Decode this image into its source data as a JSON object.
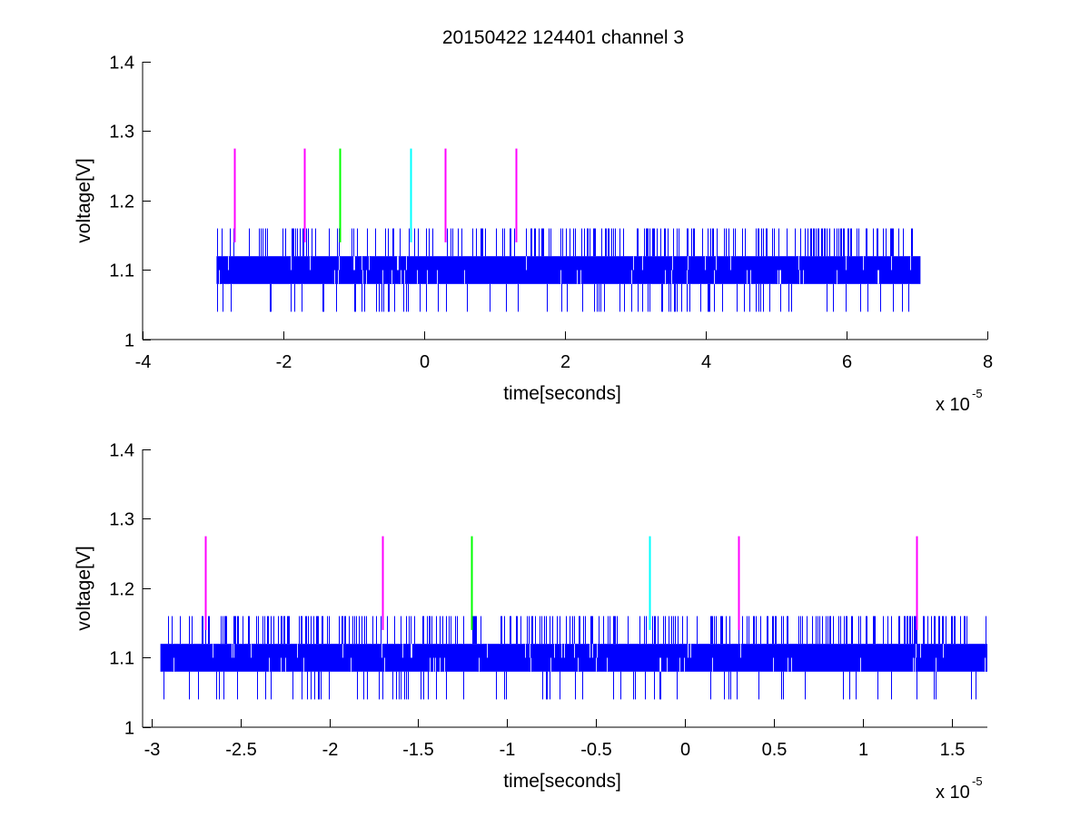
{
  "figure": {
    "title": "20150422 124401 channel 3"
  },
  "chart_data": [
    {
      "type": "line",
      "title": "20150422 124401 channel 3",
      "xlabel": "time[seconds]",
      "ylabel": "voltage[V]",
      "x_exponent_base": "x 10",
      "x_exponent_power": "-5",
      "xlim": [
        -4,
        8
      ],
      "ylim": [
        1,
        1.4
      ],
      "x_ticks": [
        -4,
        -2,
        0,
        2,
        4,
        6,
        8
      ],
      "x_tick_labels": [
        "-4",
        "-2",
        "0",
        "2",
        "4",
        "6",
        "8"
      ],
      "y_ticks": [
        1,
        1.1,
        1.2,
        1.3,
        1.4
      ],
      "y_tick_labels": [
        "1",
        "1.1",
        "1.2",
        "1.3",
        "1.4"
      ],
      "grid": false,
      "signal": {
        "color": "#0000ff",
        "x_range": [
          -2.95,
          7.05
        ],
        "band": [
          1.08,
          1.12
        ],
        "levels": [
          1.04,
          1.08,
          1.12,
          1.16
        ],
        "sparse_gap": [
          -1.15,
          -1.05
        ]
      },
      "markers": [
        {
          "x": -2.7,
          "y_range": [
            1.14,
            1.275
          ],
          "color": "#ff00ff"
        },
        {
          "x": -1.7,
          "y_range": [
            1.14,
            1.275
          ],
          "color": "#ff00ff"
        },
        {
          "x": -1.2,
          "y_range": [
            1.14,
            1.275
          ],
          "color": "#00ff00"
        },
        {
          "x": -0.2,
          "y_range": [
            1.14,
            1.275
          ],
          "color": "#00ffff"
        },
        {
          "x": 0.3,
          "y_range": [
            1.14,
            1.275
          ],
          "color": "#ff00ff"
        },
        {
          "x": 1.3,
          "y_range": [
            1.14,
            1.275
          ],
          "color": "#ff00ff"
        }
      ]
    },
    {
      "type": "line",
      "title": "",
      "xlabel": "time[seconds]",
      "ylabel": "voltage[V]",
      "x_exponent_base": "x 10",
      "x_exponent_power": "-5",
      "xlim": [
        -3.05,
        1.7
      ],
      "ylim": [
        1,
        1.4
      ],
      "x_ticks": [
        -3,
        -2.5,
        -2,
        -1.5,
        -1,
        -0.5,
        0,
        0.5,
        1,
        1.5
      ],
      "x_tick_labels": [
        "-3",
        "-2.5",
        "-2",
        "-1.5",
        "-1",
        "-0.5",
        "0",
        "0.5",
        "1",
        "1.5"
      ],
      "y_ticks": [
        1,
        1.1,
        1.2,
        1.3,
        1.4
      ],
      "y_tick_labels": [
        "1",
        "1.1",
        "1.2",
        "1.3",
        "1.4"
      ],
      "grid": false,
      "signal": {
        "color": "#0000ff",
        "x_range": [
          -2.95,
          1.7
        ],
        "band": [
          1.08,
          1.12
        ],
        "levels": [
          1.04,
          1.08,
          1.12,
          1.16
        ],
        "sparse_gap": [
          -1.15,
          -1.05
        ]
      },
      "markers": [
        {
          "x": -2.7,
          "y_range": [
            1.14,
            1.275
          ],
          "color": "#ff00ff"
        },
        {
          "x": -1.7,
          "y_range": [
            1.14,
            1.275
          ],
          "color": "#ff00ff"
        },
        {
          "x": -1.2,
          "y_range": [
            1.14,
            1.275
          ],
          "color": "#00ff00"
        },
        {
          "x": -0.2,
          "y_range": [
            1.14,
            1.275
          ],
          "color": "#00ffff"
        },
        {
          "x": 0.3,
          "y_range": [
            1.14,
            1.275
          ],
          "color": "#ff00ff"
        },
        {
          "x": 1.3,
          "y_range": [
            1.14,
            1.275
          ],
          "color": "#ff00ff"
        }
      ]
    }
  ]
}
